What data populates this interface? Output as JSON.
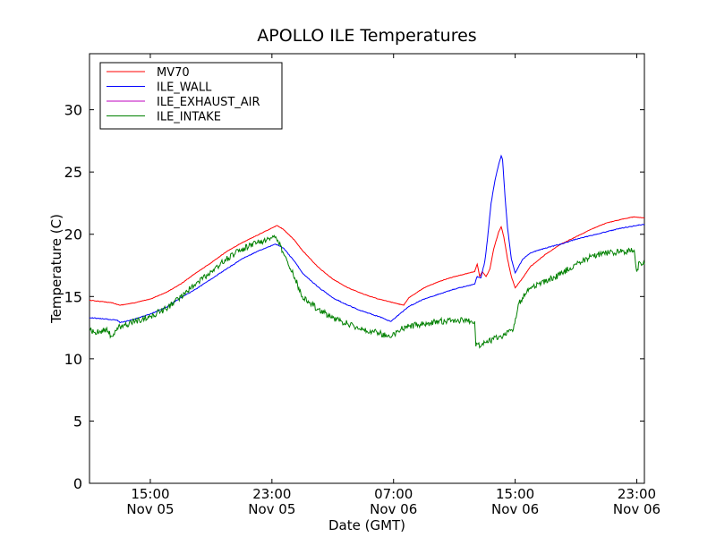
{
  "chart_data": {
    "type": "line",
    "title": "APOLLO ILE Temperatures",
    "xlabel": "Date (GMT)",
    "ylabel": "Temperature (C)",
    "x_range": [
      "2013-11-05 11:00",
      "2013-11-06 23:30"
    ],
    "ylim": [
      0,
      34.5
    ],
    "yticks": [
      0,
      5,
      10,
      15,
      20,
      25,
      30
    ],
    "xticks": [
      {
        "time": "2013-11-05 15:00",
        "line1": "15:00",
        "line2": "Nov 05"
      },
      {
        "time": "2013-11-05 23:00",
        "line1": "23:00",
        "line2": "Nov 05"
      },
      {
        "time": "2013-11-06 07:00",
        "line1": "07:00",
        "line2": "Nov 06"
      },
      {
        "time": "2013-11-06 15:00",
        "line1": "15:00",
        "line2": "Nov 06"
      },
      {
        "time": "2013-11-06 23:00",
        "line1": "23:00",
        "line2": "Nov 06"
      }
    ],
    "grid": false,
    "legend_position": "top-left",
    "series": [
      {
        "name": "MV70",
        "color": "#ff0000",
        "points": [
          [
            "2013-11-05 11:00",
            14.7
          ],
          [
            "2013-11-05 12:30",
            14.5
          ],
          [
            "2013-11-05 13:00",
            14.3
          ],
          [
            "2013-11-05 14:00",
            14.5
          ],
          [
            "2013-11-05 15:00",
            14.8
          ],
          [
            "2013-11-05 16:00",
            15.3
          ],
          [
            "2013-11-05 17:00",
            16.0
          ],
          [
            "2013-11-05 18:00",
            16.9
          ],
          [
            "2013-11-05 19:00",
            17.7
          ],
          [
            "2013-11-05 20:00",
            18.6
          ],
          [
            "2013-11-05 21:00",
            19.3
          ],
          [
            "2013-11-05 22:00",
            19.9
          ],
          [
            "2013-11-05 23:00",
            20.5
          ],
          [
            "2013-11-05 23:20",
            20.7
          ],
          [
            "2013-11-05 23:45",
            20.4
          ],
          [
            "2013-11-06 00:30",
            19.5
          ],
          [
            "2013-11-06 01:00",
            18.7
          ],
          [
            "2013-11-06 02:00",
            17.4
          ],
          [
            "2013-11-06 03:00",
            16.4
          ],
          [
            "2013-11-06 04:00",
            15.7
          ],
          [
            "2013-11-06 05:00",
            15.2
          ],
          [
            "2013-11-06 06:00",
            14.8
          ],
          [
            "2013-11-06 07:00",
            14.5
          ],
          [
            "2013-11-06 07:40",
            14.3
          ],
          [
            "2013-11-06 08:00",
            14.9
          ],
          [
            "2013-11-06 09:00",
            15.7
          ],
          [
            "2013-11-06 10:00",
            16.2
          ],
          [
            "2013-11-06 11:00",
            16.6
          ],
          [
            "2013-11-06 12:00",
            16.9
          ],
          [
            "2013-11-06 12:20",
            17.0
          ],
          [
            "2013-11-06 12:30",
            17.6
          ],
          [
            "2013-11-06 12:40",
            16.6
          ],
          [
            "2013-11-06 12:50",
            17.0
          ],
          [
            "2013-11-06 13:05",
            16.6
          ],
          [
            "2013-11-06 13:20",
            17.2
          ],
          [
            "2013-11-06 13:35",
            18.8
          ],
          [
            "2013-11-06 13:55",
            20.2
          ],
          [
            "2013-11-06 14:05",
            20.6
          ],
          [
            "2013-11-06 14:15",
            19.8
          ],
          [
            "2013-11-06 14:30",
            18.0
          ],
          [
            "2013-11-06 14:45",
            16.6
          ],
          [
            "2013-11-06 15:00",
            15.7
          ],
          [
            "2013-11-06 15:30",
            16.5
          ],
          [
            "2013-11-06 16:00",
            17.4
          ],
          [
            "2013-11-06 17:00",
            18.4
          ],
          [
            "2013-11-06 18:00",
            19.2
          ],
          [
            "2013-11-06 19:00",
            19.8
          ],
          [
            "2013-11-06 20:00",
            20.4
          ],
          [
            "2013-11-06 21:00",
            20.9
          ],
          [
            "2013-11-06 22:00",
            21.2
          ],
          [
            "2013-11-06 22:50",
            21.4
          ],
          [
            "2013-11-06 23:30",
            21.3
          ]
        ]
      },
      {
        "name": "ILE_WALL",
        "color": "#0000ff",
        "points": [
          [
            "2013-11-05 11:00",
            13.3
          ],
          [
            "2013-11-05 12:00",
            13.2
          ],
          [
            "2013-11-05 12:50",
            13.1
          ],
          [
            "2013-11-05 13:00",
            12.9
          ],
          [
            "2013-11-05 14:00",
            13.2
          ],
          [
            "2013-11-05 15:00",
            13.6
          ],
          [
            "2013-11-05 16:00",
            14.1
          ],
          [
            "2013-11-05 17:00",
            14.9
          ],
          [
            "2013-11-05 18:00",
            15.6
          ],
          [
            "2013-11-05 19:00",
            16.4
          ],
          [
            "2013-11-05 20:00",
            17.2
          ],
          [
            "2013-11-05 21:00",
            18.0
          ],
          [
            "2013-11-05 22:00",
            18.6
          ],
          [
            "2013-11-05 23:00",
            19.1
          ],
          [
            "2013-11-05 23:15",
            19.2
          ],
          [
            "2013-11-05 23:45",
            18.9
          ],
          [
            "2013-11-06 00:30",
            17.8
          ],
          [
            "2013-11-06 01:00",
            16.9
          ],
          [
            "2013-11-06 02:00",
            15.8
          ],
          [
            "2013-11-06 03:00",
            14.9
          ],
          [
            "2013-11-06 04:00",
            14.3
          ],
          [
            "2013-11-06 05:00",
            13.8
          ],
          [
            "2013-11-06 06:00",
            13.4
          ],
          [
            "2013-11-06 06:50",
            13.0
          ],
          [
            "2013-11-06 07:30",
            13.7
          ],
          [
            "2013-11-06 08:00",
            14.2
          ],
          [
            "2013-11-06 09:00",
            14.8
          ],
          [
            "2013-11-06 10:00",
            15.2
          ],
          [
            "2013-11-06 11:00",
            15.6
          ],
          [
            "2013-11-06 12:00",
            15.9
          ],
          [
            "2013-11-06 12:20",
            16.0
          ],
          [
            "2013-11-06 12:30",
            16.6
          ],
          [
            "2013-11-06 12:45",
            16.5
          ],
          [
            "2013-11-06 13:00",
            17.8
          ],
          [
            "2013-11-06 13:10",
            19.5
          ],
          [
            "2013-11-06 13:25",
            22.5
          ],
          [
            "2013-11-06 13:40",
            24.3
          ],
          [
            "2013-11-06 13:55",
            25.6
          ],
          [
            "2013-11-06 14:05",
            26.3
          ],
          [
            "2013-11-06 14:10",
            26.0
          ],
          [
            "2013-11-06 14:20",
            23.0
          ],
          [
            "2013-11-06 14:30",
            20.5
          ],
          [
            "2013-11-06 14:45",
            18.0
          ],
          [
            "2013-11-06 15:00",
            16.9
          ],
          [
            "2013-11-06 15:30",
            18.0
          ],
          [
            "2013-11-06 16:00",
            18.5
          ],
          [
            "2013-11-06 17:00",
            18.9
          ],
          [
            "2013-11-06 18:00",
            19.2
          ],
          [
            "2013-11-06 19:00",
            19.6
          ],
          [
            "2013-11-06 20:00",
            19.9
          ],
          [
            "2013-11-06 21:00",
            20.2
          ],
          [
            "2013-11-06 22:00",
            20.5
          ],
          [
            "2013-11-06 23:00",
            20.7
          ],
          [
            "2013-11-06 23:30",
            20.8
          ]
        ]
      },
      {
        "name": "ILE_EXHAUST_AIR",
        "color": "#bf00bf",
        "points": []
      },
      {
        "name": "ILE_INTAKE",
        "color": "#008000",
        "points": [
          [
            "2013-11-05 11:00",
            12.3
          ],
          [
            "2013-11-05 11:30",
            12.1
          ],
          [
            "2013-11-05 12:00",
            12.4
          ],
          [
            "2013-11-05 12:30",
            11.8
          ],
          [
            "2013-11-05 13:00",
            12.6
          ],
          [
            "2013-11-05 14:00",
            13.0
          ],
          [
            "2013-11-05 15:00",
            13.4
          ],
          [
            "2013-11-05 16:00",
            14.0
          ],
          [
            "2013-11-05 17:00",
            15.0
          ],
          [
            "2013-11-05 18:00",
            16.0
          ],
          [
            "2013-11-05 19:00",
            17.0
          ],
          [
            "2013-11-05 20:00",
            18.0
          ],
          [
            "2013-11-05 21:00",
            18.8
          ],
          [
            "2013-11-05 22:00",
            19.3
          ],
          [
            "2013-11-05 23:00",
            19.7
          ],
          [
            "2013-11-05 23:15",
            19.8
          ],
          [
            "2013-11-05 23:45",
            18.5
          ],
          [
            "2013-11-06 00:30",
            16.5
          ],
          [
            "2013-11-06 01:00",
            15.0
          ],
          [
            "2013-11-06 02:00",
            14.0
          ],
          [
            "2013-11-06 03:00",
            13.3
          ],
          [
            "2013-11-06 04:00",
            12.8
          ],
          [
            "2013-11-06 05:00",
            12.4
          ],
          [
            "2013-11-06 06:00",
            12.1
          ],
          [
            "2013-11-06 06:50",
            11.7
          ],
          [
            "2013-11-06 07:30",
            12.4
          ],
          [
            "2013-11-06 08:00",
            12.6
          ],
          [
            "2013-11-06 09:00",
            12.8
          ],
          [
            "2013-11-06 10:00",
            13.0
          ],
          [
            "2013-11-06 11:00",
            13.1
          ],
          [
            "2013-11-06 12:20",
            13.0
          ],
          [
            "2013-11-06 12:25",
            11.0
          ],
          [
            "2013-11-06 13:00",
            11.3
          ],
          [
            "2013-11-06 14:00",
            11.8
          ],
          [
            "2013-11-06 14:50",
            12.2
          ],
          [
            "2013-11-06 15:15",
            14.5
          ],
          [
            "2013-11-06 15:40",
            15.2
          ],
          [
            "2013-11-06 16:00",
            15.7
          ],
          [
            "2013-11-06 17:00",
            16.2
          ],
          [
            "2013-11-06 18:00",
            16.8
          ],
          [
            "2013-11-06 19:00",
            17.6
          ],
          [
            "2013-11-06 20:00",
            18.2
          ],
          [
            "2013-11-06 21:00",
            18.5
          ],
          [
            "2013-11-06 22:00",
            18.6
          ],
          [
            "2013-11-06 22:50",
            18.7
          ],
          [
            "2013-11-06 23:00",
            17.0
          ],
          [
            "2013-11-06 23:10",
            17.8
          ],
          [
            "2013-11-06 23:30",
            17.6
          ]
        ]
      }
    ]
  }
}
